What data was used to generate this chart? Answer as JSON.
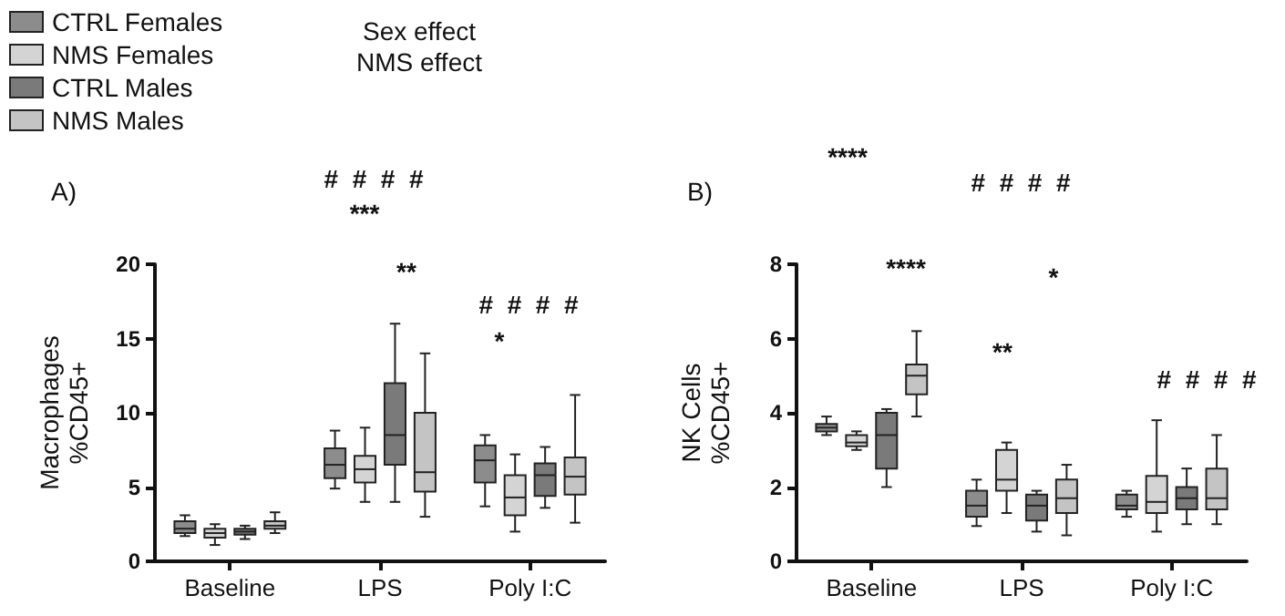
{
  "chart_data": [
    {
      "type": "box",
      "ylabel": "Macrophages\n%CD45+",
      "categories": [
        "Baseline",
        "LPS",
        "Poly I:C"
      ],
      "ylim": [
        0,
        20
      ],
      "yticks": [
        0,
        5,
        10,
        15,
        20
      ],
      "grid": false,
      "legend": "top left",
      "series": [
        {
          "name": "CTRL Females",
          "color": "#8c8c8c",
          "boxes": [
            {
              "low": 1.7,
              "q1": 1.9,
              "median": 2.2,
              "q3": 2.7,
              "high": 3.1
            },
            {
              "low": 4.9,
              "q1": 5.6,
              "median": 6.5,
              "q3": 7.6,
              "high": 8.8
            },
            {
              "low": 3.7,
              "q1": 5.3,
              "median": 6.8,
              "q3": 7.8,
              "high": 8.5
            }
          ]
        },
        {
          "name": "NMS Females",
          "color": "#d4d4d4",
          "boxes": [
            {
              "low": 1.1,
              "q1": 1.6,
              "median": 1.9,
              "q3": 2.2,
              "high": 2.5
            },
            {
              "low": 4.0,
              "q1": 5.3,
              "median": 6.2,
              "q3": 7.1,
              "high": 9.0
            },
            {
              "low": 2.0,
              "q1": 3.1,
              "median": 4.3,
              "q3": 5.8,
              "high": 7.2
            }
          ]
        },
        {
          "name": "CTRL Males",
          "color": "#7a7a7a",
          "boxes": [
            {
              "low": 1.5,
              "q1": 1.8,
              "median": 2.0,
              "q3": 2.2,
              "high": 2.4
            },
            {
              "low": 4.0,
              "q1": 6.5,
              "median": 8.5,
              "q3": 12.0,
              "high": 16.0
            },
            {
              "low": 3.6,
              "q1": 4.4,
              "median": 5.8,
              "q3": 6.6,
              "high": 7.7
            }
          ]
        },
        {
          "name": "NMS Males",
          "color": "#c4c4c4",
          "boxes": [
            {
              "low": 1.9,
              "q1": 2.2,
              "median": 2.4,
              "q3": 2.7,
              "high": 3.3
            },
            {
              "low": 3.0,
              "q1": 4.7,
              "median": 6.0,
              "q3": 10.0,
              "high": 14.0
            },
            {
              "low": 2.6,
              "q1": 4.5,
              "median": 5.7,
              "q3": 7.0,
              "high": 11.2
            }
          ]
        }
      ],
      "annotations": [
        "A)",
        "Sex effect",
        "NMS effect",
        "***",
        "#  #  #  #",
        "**",
        "*",
        "#  #  #  #"
      ]
    },
    {
      "type": "box",
      "ylabel": "NK Cells\n%CD45+",
      "categories": [
        "Baseline",
        "LPS",
        "Poly I:C"
      ],
      "ylim": [
        0,
        8
      ],
      "yticks": [
        0,
        2,
        4,
        6,
        8
      ],
      "grid": false,
      "series": [
        {
          "color": "#8c8c8c",
          "boxes": [
            {
              "low": 3.4,
              "q1": 3.5,
              "median": 3.6,
              "q3": 3.7,
              "high": 3.9
            },
            {
              "low": 0.95,
              "q1": 1.2,
              "median": 1.5,
              "q3": 1.9,
              "high": 2.2
            },
            {
              "low": 1.2,
              "q1": 1.4,
              "median": 1.5,
              "q3": 1.8,
              "high": 1.9
            }
          ]
        },
        {
          "color": "#d4d4d4",
          "boxes": [
            {
              "low": 3.0,
              "q1": 3.1,
              "median": 3.2,
              "q3": 3.4,
              "high": 3.5
            },
            {
              "low": 1.3,
              "q1": 1.9,
              "median": 2.2,
              "q3": 3.0,
              "high": 3.2
            },
            {
              "low": 0.8,
              "q1": 1.3,
              "median": 1.6,
              "q3": 2.3,
              "high": 3.8
            }
          ]
        },
        {
          "color": "#7a7a7a",
          "boxes": [
            {
              "low": 2.0,
              "q1": 2.5,
              "median": 3.4,
              "q3": 4.0,
              "high": 4.1
            },
            {
              "low": 0.8,
              "q1": 1.1,
              "median": 1.5,
              "q3": 1.8,
              "high": 1.9
            },
            {
              "low": 1.0,
              "q1": 1.4,
              "median": 1.7,
              "q3": 2.0,
              "high": 2.5
            }
          ]
        },
        {
          "color": "#c4c4c4",
          "boxes": [
            {
              "low": 3.9,
              "q1": 4.5,
              "median": 5.0,
              "q3": 5.3,
              "high": 6.2
            },
            {
              "low": 0.7,
              "q1": 1.3,
              "median": 1.7,
              "q3": 2.2,
              "high": 2.6
            },
            {
              "low": 1.0,
              "q1": 1.4,
              "median": 1.7,
              "q3": 2.5,
              "high": 3.4
            }
          ]
        }
      ],
      "annotations": [
        "B)",
        "****",
        "****",
        "#  #  #  #",
        "*",
        "**",
        "#  #  #  #"
      ]
    }
  ]
}
